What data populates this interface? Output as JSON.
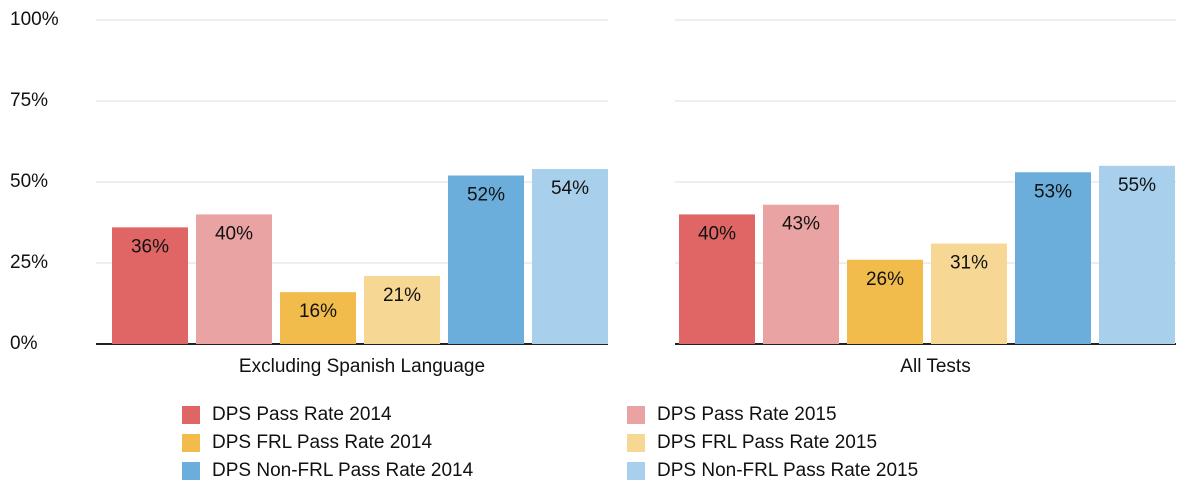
{
  "chart_data": {
    "type": "bar",
    "categories": [
      "Excluding Spanish Language",
      "All Tests"
    ],
    "series": [
      {
        "name": "DPS Pass Rate 2014",
        "color": "#e06666",
        "values": [
          36,
          40
        ],
        "value_labels": [
          "36%",
          "40%"
        ]
      },
      {
        "name": "DPS Pass Rate 2015",
        "color": "#eaa3a3",
        "values": [
          40,
          43
        ],
        "value_labels": [
          "40%",
          "43%"
        ]
      },
      {
        "name": "DPS FRL Pass Rate 2014",
        "color": "#f1bc4b",
        "values": [
          16,
          26
        ],
        "value_labels": [
          "16%",
          "26%"
        ]
      },
      {
        "name": "DPS FRL Pass Rate 2015",
        "color": "#f7d794",
        "values": [
          21,
          31
        ],
        "value_labels": [
          "21%",
          "31%"
        ]
      },
      {
        "name": "DPS Non-FRL Pass Rate 2014",
        "color": "#6baedb",
        "values": [
          52,
          53
        ],
        "value_labels": [
          "52%",
          "53%"
        ]
      },
      {
        "name": "DPS Non-FRL Pass Rate 2015",
        "color": "#a8d0ec",
        "values": [
          54,
          55
        ],
        "value_labels": [
          "54%",
          "55%"
        ]
      }
    ],
    "ylim": [
      0,
      100
    ],
    "yticks": [
      {
        "value": 0,
        "label": "0%"
      },
      {
        "value": 25,
        "label": "25%"
      },
      {
        "value": 50,
        "label": "50%"
      },
      {
        "value": 75,
        "label": "75%"
      },
      {
        "value": 100,
        "label": "100%"
      }
    ],
    "grid": true
  }
}
